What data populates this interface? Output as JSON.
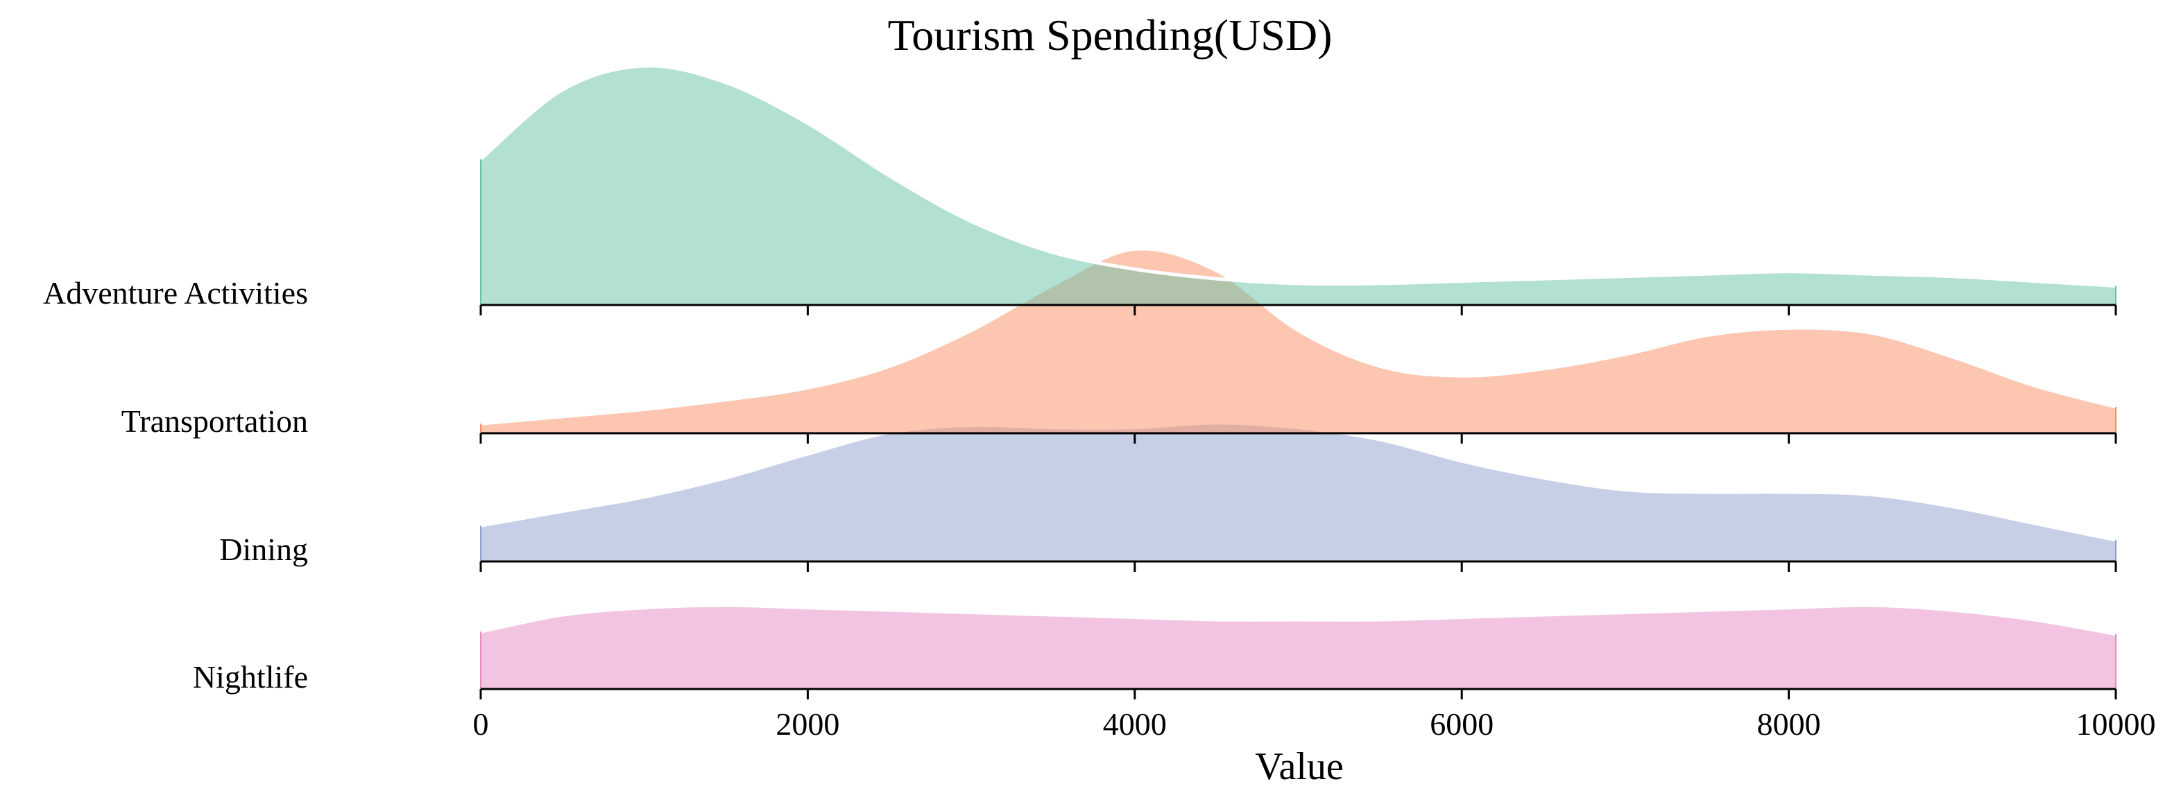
{
  "chart_data": {
    "type": "area",
    "title": "Tourism Spending(USD)",
    "xlabel": "Value",
    "ylabel": "",
    "xlim": [
      0,
      10000
    ],
    "x_ticks": [
      0,
      2000,
      4000,
      6000,
      8000,
      10000
    ],
    "x_tick_labels": [
      "0",
      "2000",
      "4000",
      "6000",
      "8000",
      "10000"
    ],
    "legend": "none",
    "grid": false,
    "series": [
      {
        "name": "Adventure Activities",
        "color": "#66c2a5",
        "x": [
          0,
          500,
          1000,
          1500,
          2000,
          2500,
          3000,
          3500,
          4000,
          4500,
          5000,
          5500,
          6000,
          6500,
          7000,
          7500,
          8000,
          8500,
          9000,
          9500,
          10000
        ],
        "density": [
          0.61,
          0.9,
          1.0,
          0.93,
          0.76,
          0.54,
          0.35,
          0.22,
          0.15,
          0.11,
          0.09,
          0.09,
          0.1,
          0.11,
          0.12,
          0.13,
          0.14,
          0.13,
          0.12,
          0.1,
          0.08
        ]
      },
      {
        "name": "Transportation",
        "color": "#fc8d62",
        "x": [
          0,
          500,
          1000,
          1500,
          2000,
          2500,
          3000,
          3500,
          4000,
          4500,
          5000,
          5500,
          6000,
          6500,
          7000,
          7500,
          8000,
          8500,
          9000,
          9500,
          10000
        ],
        "density": [
          0.04,
          0.07,
          0.1,
          0.14,
          0.19,
          0.28,
          0.43,
          0.62,
          0.77,
          0.68,
          0.43,
          0.28,
          0.24,
          0.27,
          0.33,
          0.41,
          0.44,
          0.42,
          0.32,
          0.2,
          0.11
        ]
      },
      {
        "name": "Dining",
        "color": "#8da0cb",
        "x": [
          0,
          500,
          1000,
          1500,
          2000,
          2500,
          3000,
          3500,
          4000,
          4500,
          5000,
          5500,
          6000,
          6500,
          7000,
          7500,
          8000,
          8500,
          9000,
          9500,
          10000
        ],
        "density": [
          0.15,
          0.21,
          0.27,
          0.35,
          0.45,
          0.54,
          0.57,
          0.56,
          0.56,
          0.58,
          0.56,
          0.51,
          0.42,
          0.35,
          0.3,
          0.29,
          0.29,
          0.28,
          0.23,
          0.16,
          0.09
        ]
      },
      {
        "name": "Nightlife",
        "color": "#e78ac3",
        "x": [
          0,
          500,
          1000,
          1500,
          2000,
          2500,
          3000,
          3500,
          4000,
          4500,
          5000,
          5500,
          6000,
          6500,
          7000,
          7500,
          8000,
          8500,
          9000,
          9500,
          10000
        ],
        "density": [
          0.24,
          0.31,
          0.34,
          0.35,
          0.34,
          0.33,
          0.32,
          0.31,
          0.3,
          0.29,
          0.29,
          0.29,
          0.3,
          0.31,
          0.32,
          0.33,
          0.34,
          0.35,
          0.33,
          0.29,
          0.23
        ]
      }
    ]
  }
}
